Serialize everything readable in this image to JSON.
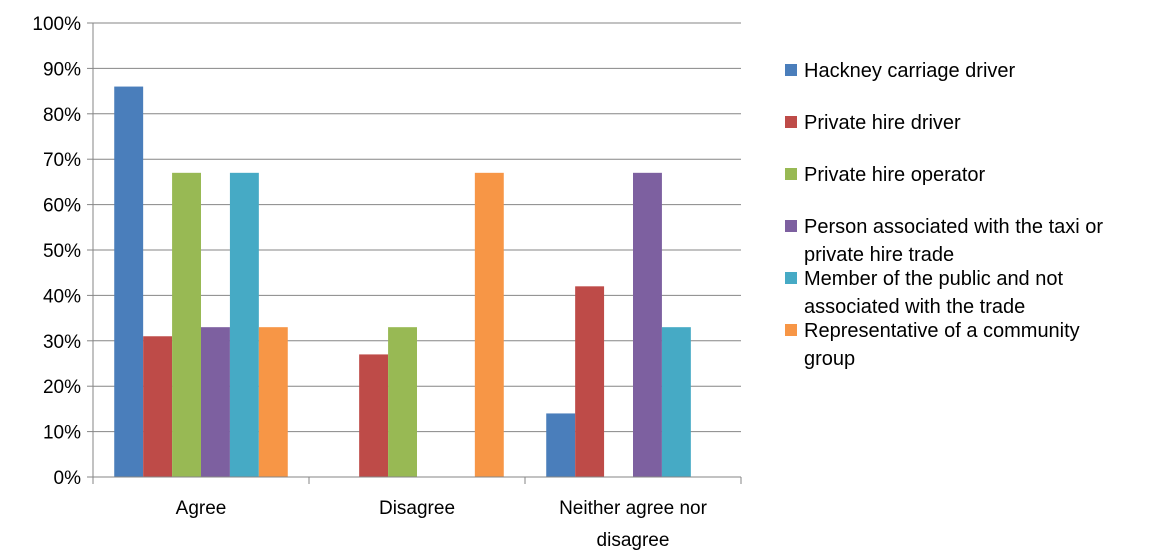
{
  "chart_data": {
    "type": "bar",
    "categories": [
      [
        "Agree"
      ],
      [
        "Disagree"
      ],
      [
        "Neither agree nor",
        "disagree"
      ]
    ],
    "y_ticks": [
      "0%",
      "10%",
      "20%",
      "30%",
      "40%",
      "50%",
      "60%",
      "70%",
      "80%",
      "90%",
      "100%"
    ],
    "ylim": [
      0,
      100
    ],
    "grid": true,
    "legend_position": "right",
    "series": [
      {
        "name": [
          "Hackney carriage driver"
        ],
        "color": "#4a7ebb",
        "values": [
          86,
          0,
          14
        ]
      },
      {
        "name": [
          "Private hire driver"
        ],
        "color": "#be4b48",
        "values": [
          31,
          27,
          42
        ]
      },
      {
        "name": [
          "Private hire operator"
        ],
        "color": "#98b954",
        "values": [
          67,
          33,
          0
        ]
      },
      {
        "name": [
          "Person associated with the taxi or",
          "private hire trade"
        ],
        "color": "#7d60a0",
        "values": [
          33,
          0,
          67
        ]
      },
      {
        "name": [
          "Member of the public and not",
          "associated with the trade"
        ],
        "color": "#46aac5",
        "values": [
          67,
          0,
          33
        ]
      },
      {
        "name": [
          "Representative of a community",
          "group"
        ],
        "color": "#f79646",
        "values": [
          33,
          67,
          0
        ]
      }
    ]
  }
}
